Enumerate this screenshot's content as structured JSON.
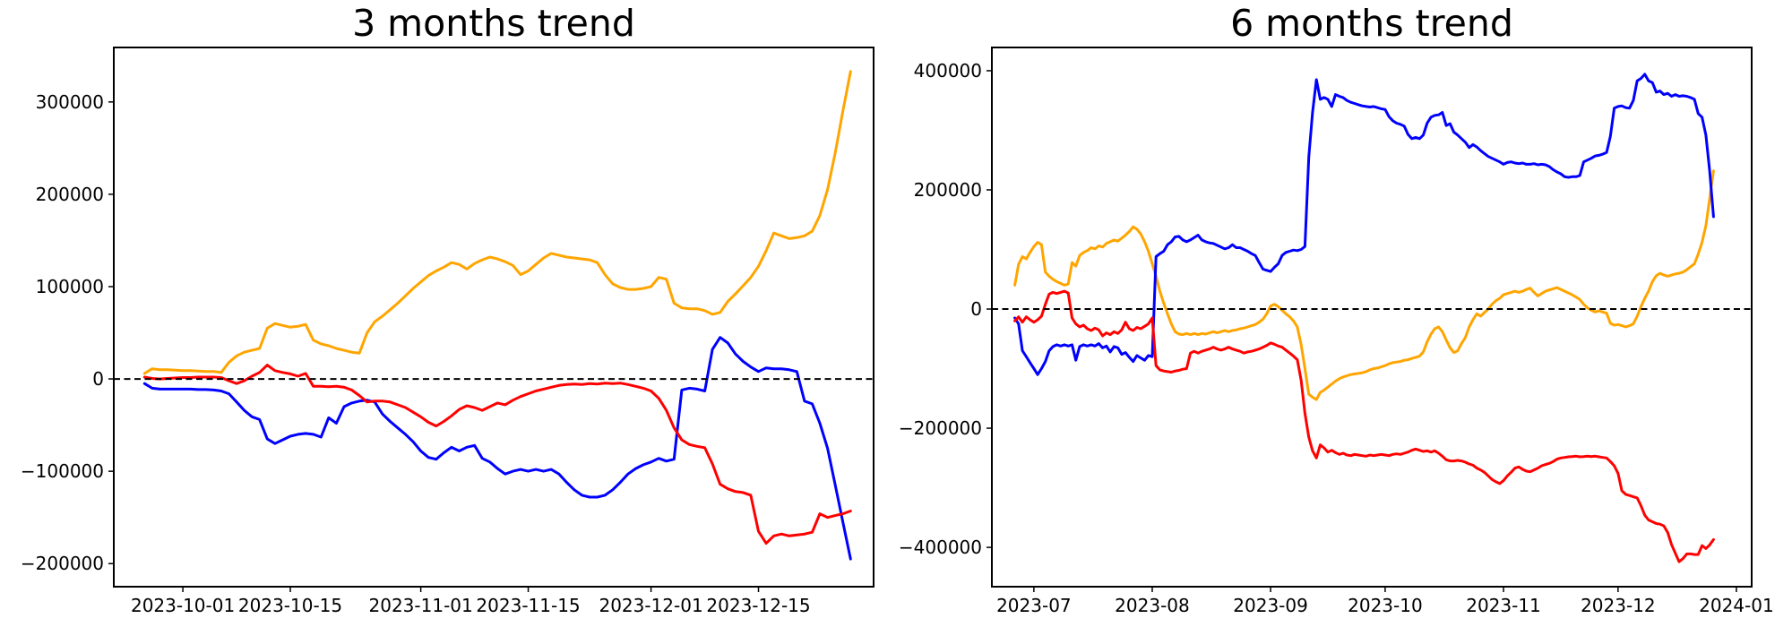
{
  "figure": {
    "background": "#ffffff",
    "text_color": "#000000"
  },
  "chart_data": [
    {
      "type": "line",
      "title": "3 months trend",
      "x_domain": [
        "2023-09-22",
        "2023-12-30"
      ],
      "y_domain": [
        -225000,
        359000
      ],
      "x_ticks": [
        "2023-10-01",
        "2023-10-15",
        "2023-11-01",
        "2023-11-15",
        "2023-12-01",
        "2023-12-15"
      ],
      "y_ticks": [
        300000,
        200000,
        100000,
        0,
        -100000,
        -200000
      ],
      "zero_line": {
        "value": 0,
        "style": "dashed",
        "color": "#000000"
      },
      "grid": false,
      "legend": false,
      "series": [
        {
          "name": "orange",
          "color": "#FFA500",
          "start_date": "2023-09-26",
          "interval_days": 1,
          "values": [
            6000,
            11000,
            10000,
            10000,
            9500,
            9000,
            9000,
            8500,
            8000,
            8000,
            7000,
            18000,
            25000,
            29000,
            31000,
            33000,
            55000,
            60000,
            58000,
            56000,
            57000,
            59000,
            42000,
            38000,
            36000,
            33000,
            31000,
            29000,
            28000,
            50000,
            62000,
            68000,
            75000,
            82000,
            90000,
            98000,
            105000,
            112000,
            117000,
            121000,
            126000,
            124000,
            119000,
            125000,
            129000,
            132000,
            130000,
            127000,
            123000,
            113000,
            117000,
            124000,
            131000,
            136000,
            134000,
            132000,
            131000,
            130000,
            129000,
            126000,
            113000,
            103000,
            99000,
            97000,
            97000,
            98000,
            100000,
            110000,
            108000,
            82000,
            77000,
            76000,
            76000,
            74000,
            70000,
            72000,
            84000,
            92000,
            101000,
            110000,
            122000,
            139000,
            158000,
            155000,
            152000,
            153000,
            155000,
            160000,
            177000,
            205000,
            245000,
            290000,
            333000
          ]
        },
        {
          "name": "blue",
          "color": "#0000FF",
          "start_date": "2023-09-26",
          "interval_days": 1,
          "values": [
            -5000,
            -10000,
            -11000,
            -11000,
            -11000,
            -11000,
            -11000,
            -11500,
            -11500,
            -12000,
            -13000,
            -16000,
            -25000,
            -34000,
            -41000,
            -44000,
            -65000,
            -70000,
            -66000,
            -62000,
            -60000,
            -59000,
            -60000,
            -63000,
            -42000,
            -48000,
            -30000,
            -26000,
            -24000,
            -23000,
            -25000,
            -38000,
            -46000,
            -53000,
            -60000,
            -68000,
            -78000,
            -85000,
            -87000,
            -80000,
            -74000,
            -78000,
            -74000,
            -72000,
            -86000,
            -90000,
            -97000,
            -103000,
            -100000,
            -98000,
            -100000,
            -98000,
            -100000,
            -98000,
            -103000,
            -112000,
            -120000,
            -126000,
            -128000,
            -128000,
            -126000,
            -120000,
            -112000,
            -103000,
            -97000,
            -93000,
            -90000,
            -86000,
            -89000,
            -87000,
            -12000,
            -10000,
            -11000,
            -13000,
            32000,
            45000,
            39000,
            27000,
            19000,
            13000,
            8000,
            12000,
            11000,
            11000,
            10000,
            8000,
            -24000,
            -27000,
            -48000,
            -75000,
            -115000,
            -155000,
            -195000
          ]
        },
        {
          "name": "red",
          "color": "#FF0000",
          "start_date": "2023-09-26",
          "interval_days": 1,
          "values": [
            2000,
            500,
            0,
            500,
            1000,
            1500,
            1500,
            2000,
            2000,
            2000,
            1500,
            -2000,
            -5000,
            -2000,
            3000,
            7000,
            15000,
            9000,
            7000,
            5500,
            3000,
            6000,
            -8000,
            -8000,
            -8500,
            -8000,
            -9000,
            -12000,
            -18000,
            -25000,
            -24000,
            -24000,
            -25000,
            -28000,
            -31000,
            -36000,
            -41000,
            -47000,
            -51000,
            -46000,
            -40000,
            -33000,
            -29000,
            -31000,
            -34000,
            -30000,
            -26000,
            -28000,
            -23000,
            -19000,
            -16000,
            -13000,
            -11000,
            -9000,
            -7000,
            -6000,
            -5500,
            -6000,
            -5000,
            -5500,
            -4500,
            -5000,
            -4500,
            -6000,
            -8000,
            -10000,
            -13000,
            -21000,
            -34000,
            -53000,
            -66000,
            -71000,
            -73000,
            -74500,
            -92000,
            -114000,
            -119000,
            -122000,
            -123000,
            -126000,
            -165000,
            -178000,
            -170000,
            -168000,
            -170000,
            -169000,
            -168000,
            -166000,
            -146000,
            -150000,
            -148000,
            -146000,
            -143000
          ]
        }
      ]
    },
    {
      "type": "line",
      "title": "6 months trend",
      "x_domain": [
        "2023-06-20",
        "2024-01-05"
      ],
      "y_domain": [
        -466000,
        439000
      ],
      "x_ticks": [
        "2023-07",
        "2023-08",
        "2023-09",
        "2023-10",
        "2023-11",
        "2023-12",
        "2024-01"
      ],
      "x_tick_dates": [
        "2023-07-01",
        "2023-08-01",
        "2023-09-01",
        "2023-10-01",
        "2023-11-01",
        "2023-12-01",
        "2024-01-01"
      ],
      "y_ticks": [
        400000,
        200000,
        0,
        -200000,
        -400000
      ],
      "zero_line": {
        "value": 0,
        "style": "dashed",
        "color": "#000000"
      },
      "grid": false,
      "legend": false,
      "series": [
        {
          "name": "orange",
          "color": "#FFA500",
          "start_date": "2023-06-26",
          "interval_days": 1,
          "values": [
            40000,
            75000,
            88000,
            84000,
            95000,
            105000,
            112000,
            108000,
            62000,
            55000,
            50000,
            46000,
            43000,
            40000,
            42000,
            78000,
            72000,
            90000,
            95000,
            98000,
            103000,
            101000,
            106000,
            104000,
            110000,
            113000,
            116000,
            114000,
            119000,
            124000,
            130000,
            138000,
            134000,
            126000,
            113000,
            97000,
            76000,
            55000,
            30000,
            10000,
            -8000,
            -25000,
            -38000,
            -42000,
            -43000,
            -41000,
            -43000,
            -41000,
            -43000,
            -41000,
            -42000,
            -40000,
            -38000,
            -40000,
            -38000,
            -36000,
            -38000,
            -36000,
            -35000,
            -33000,
            -32000,
            -30000,
            -28000,
            -26000,
            -22000,
            -17000,
            -8000,
            5000,
            8000,
            4000,
            -2000,
            -8000,
            -13000,
            -20000,
            -30000,
            -60000,
            -100000,
            -143000,
            -148000,
            -152000,
            -140000,
            -136000,
            -131000,
            -126000,
            -121000,
            -117000,
            -114000,
            -112000,
            -110000,
            -109000,
            -108000,
            -107000,
            -105000,
            -102000,
            -100000,
            -99000,
            -97000,
            -95000,
            -92000,
            -90000,
            -89000,
            -88000,
            -86000,
            -85000,
            -83000,
            -81000,
            -79000,
            -72000,
            -55000,
            -42000,
            -33000,
            -30000,
            -38000,
            -52000,
            -65000,
            -73000,
            -70000,
            -58000,
            -48000,
            -30000,
            -18000,
            -8000,
            -12000,
            -6000,
            0,
            8000,
            14000,
            18000,
            24000,
            26000,
            28000,
            30000,
            28000,
            30000,
            33000,
            35000,
            28000,
            22000,
            26000,
            30000,
            32000,
            34000,
            36000,
            33000,
            30000,
            27000,
            24000,
            20000,
            16000,
            8000,
            2000,
            -2000,
            -5000,
            -3000,
            -5000,
            -7000,
            -24000,
            -27000,
            -26000,
            -28000,
            -30000,
            -28000,
            -25000,
            -12000,
            4000,
            18000,
            30000,
            46000,
            56000,
            60000,
            57000,
            55000,
            57000,
            59000,
            60000,
            62000,
            66000,
            71000,
            76000,
            92000,
            112000,
            140000,
            185000,
            232000
          ]
        },
        {
          "name": "blue",
          "color": "#0000FF",
          "start_date": "2023-06-26",
          "interval_days": 1,
          "values": [
            -15000,
            -25000,
            -70000,
            -80000,
            -90000,
            -100000,
            -110000,
            -100000,
            -88000,
            -70000,
            -63000,
            -60000,
            -62000,
            -60000,
            -62000,
            -60000,
            -86000,
            -63000,
            -60000,
            -62000,
            -60000,
            -62000,
            -58000,
            -65000,
            -62000,
            -72000,
            -63000,
            -65000,
            -76000,
            -73000,
            -81000,
            -88000,
            -78000,
            -82000,
            -86000,
            -78000,
            -80000,
            88000,
            93000,
            97000,
            108000,
            113000,
            121000,
            122000,
            116000,
            113000,
            116000,
            120000,
            124000,
            116000,
            113000,
            111000,
            110000,
            107000,
            104000,
            101000,
            103000,
            108000,
            103000,
            103000,
            100000,
            97000,
            93000,
            90000,
            78000,
            67000,
            65000,
            63000,
            70000,
            76000,
            90000,
            95000,
            97000,
            99000,
            98000,
            100000,
            105000,
            255000,
            330000,
            385000,
            352000,
            355000,
            352000,
            340000,
            360000,
            357000,
            355000,
            350000,
            347000,
            345000,
            343000,
            341000,
            340000,
            339000,
            340000,
            338000,
            336000,
            335000,
            323000,
            316000,
            312000,
            310000,
            307000,
            293000,
            286000,
            288000,
            286000,
            292000,
            312000,
            322000,
            325000,
            326000,
            330000,
            308000,
            311000,
            297000,
            292000,
            286000,
            280000,
            271000,
            276000,
            272000,
            266000,
            261000,
            256000,
            253000,
            250000,
            247000,
            243000,
            246000,
            247000,
            245000,
            244000,
            245000,
            243000,
            243000,
            244000,
            242000,
            243000,
            242000,
            239000,
            234000,
            230000,
            227000,
            222000,
            221000,
            222000,
            222000,
            224000,
            247000,
            250000,
            253000,
            257000,
            258000,
            260000,
            263000,
            290000,
            337000,
            340000,
            341000,
            338000,
            337000,
            350000,
            383000,
            387000,
            394000,
            383000,
            380000,
            364000,
            366000,
            360000,
            362000,
            357000,
            360000,
            357000,
            358000,
            357000,
            355000,
            352000,
            328000,
            322000,
            292000,
            232000,
            155000
          ]
        },
        {
          "name": "red",
          "color": "#FF0000",
          "start_date": "2023-06-26",
          "interval_days": 1,
          "values": [
            -20000,
            -13000,
            -22000,
            -13000,
            -18000,
            -22000,
            -18000,
            -12000,
            8000,
            25000,
            28000,
            26000,
            28000,
            30000,
            27000,
            -15000,
            -25000,
            -30000,
            -27000,
            -33000,
            -36000,
            -32000,
            -35000,
            -45000,
            -40000,
            -43000,
            -38000,
            -41000,
            -35000,
            -22000,
            -33000,
            -36000,
            -31000,
            -33000,
            -29000,
            -25000,
            -15000,
            -95000,
            -102000,
            -104000,
            -105000,
            -106000,
            -104000,
            -103000,
            -101000,
            -100000,
            -74000,
            -71000,
            -74000,
            -71000,
            -69000,
            -67000,
            -64000,
            -67000,
            -69000,
            -67000,
            -64000,
            -67000,
            -69000,
            -71000,
            -74000,
            -72000,
            -71000,
            -69000,
            -67000,
            -64000,
            -61000,
            -57000,
            -59000,
            -62000,
            -64000,
            -69000,
            -74000,
            -79000,
            -85000,
            -120000,
            -175000,
            -215000,
            -238000,
            -250000,
            -228000,
            -233000,
            -240000,
            -237000,
            -241000,
            -244000,
            -242000,
            -245000,
            -246000,
            -244000,
            -245000,
            -246000,
            -247000,
            -245000,
            -246000,
            -245000,
            -244000,
            -245000,
            -246000,
            -244000,
            -243000,
            -244000,
            -242000,
            -240000,
            -237000,
            -235000,
            -237000,
            -239000,
            -238000,
            -240000,
            -238000,
            -242000,
            -247000,
            -253000,
            -255000,
            -255000,
            -254000,
            -255000,
            -257000,
            -260000,
            -262000,
            -267000,
            -270000,
            -274000,
            -280000,
            -286000,
            -290000,
            -293000,
            -288000,
            -280000,
            -274000,
            -267000,
            -265000,
            -269000,
            -272000,
            -273000,
            -270000,
            -267000,
            -263000,
            -261000,
            -259000,
            -256000,
            -252000,
            -250000,
            -249000,
            -248000,
            -247500,
            -247000,
            -248000,
            -247500,
            -247000,
            -247500,
            -247000,
            -248000,
            -249000,
            -250000,
            -256000,
            -263000,
            -276000,
            -305000,
            -311000,
            -313000,
            -315000,
            -317000,
            -330000,
            -346000,
            -354000,
            -357000,
            -360000,
            -361000,
            -364000,
            -375000,
            -395000,
            -410000,
            -424000,
            -419000,
            -411000,
            -411000,
            -412000,
            -412000,
            -397000,
            -402000,
            -396000,
            -387000
          ]
        }
      ]
    }
  ]
}
